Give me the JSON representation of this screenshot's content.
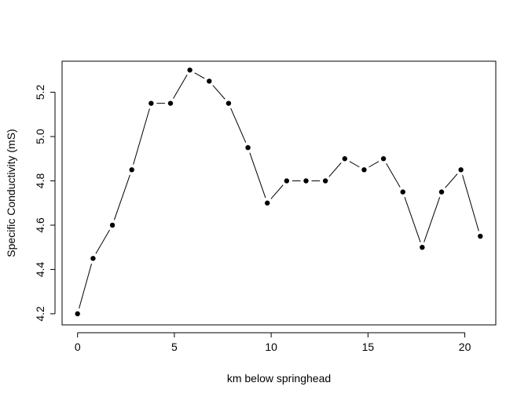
{
  "chart_data": {
    "type": "line",
    "xlabel": "km below springhead",
    "ylabel": "Specific Conductivity (mS)",
    "xlim": [
      -0.8,
      21.6
    ],
    "ylim": [
      4.15,
      5.34
    ],
    "xticks": [
      0,
      5,
      10,
      15,
      20
    ],
    "xtick_labels": [
      "0",
      "5",
      "10",
      "15",
      "20"
    ],
    "yticks": [
      4.2,
      4.4,
      4.6,
      4.8,
      5.0,
      5.2
    ],
    "ytick_labels": [
      "4.2",
      "4.4",
      "4.6",
      "4.8",
      "5.0",
      "5.2"
    ],
    "grid": false,
    "style": "points-connected-by-lines",
    "color": "#000000",
    "series": [
      {
        "x": [
          0,
          0.8,
          1.8,
          2.8,
          3.8,
          4.8,
          5.8,
          6.8,
          7.8,
          8.8,
          9.8,
          10.8,
          11.8,
          12.8,
          13.8,
          14.8,
          15.8,
          16.8,
          17.8,
          18.8,
          19.8,
          20.8
        ],
        "y": [
          4.2,
          4.45,
          4.6,
          4.85,
          5.15,
          5.15,
          5.3,
          5.25,
          5.15,
          4.95,
          4.7,
          4.8,
          4.8,
          4.8,
          4.9,
          4.85,
          4.9,
          4.75,
          4.5,
          4.75,
          4.85,
          4.55
        ]
      }
    ]
  }
}
